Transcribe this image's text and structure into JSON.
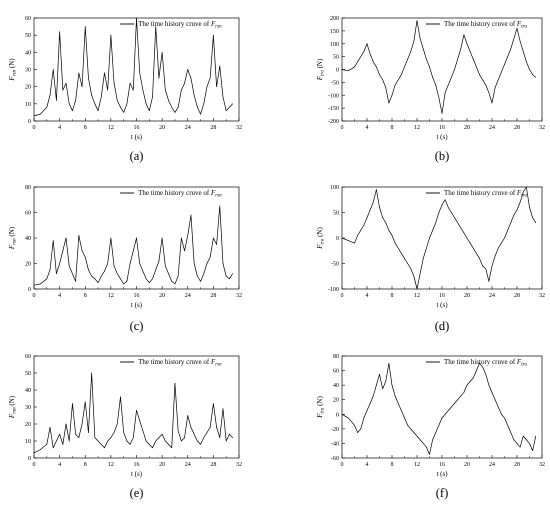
{
  "figure": {
    "panels": [
      {
        "id": "a",
        "caption": "(a)",
        "legend_text": "The time history cruve of",
        "legend_symbol_base": "F",
        "legend_symbol_sub": "rsn",
        "ylabel_base": "F",
        "ylabel_sub": "rsn",
        "ylabel_unit": " (N)",
        "xlabel": "t (s)"
      },
      {
        "id": "b",
        "caption": "(b)",
        "legend_text": "The time history cruve of",
        "legend_symbol_base": "F",
        "legend_symbol_sub": "tra",
        "ylabel_base": "F",
        "ylabel_sub": "tra",
        "ylabel_unit": " (N)",
        "xlabel": "t (s)"
      },
      {
        "id": "c",
        "caption": "(c)",
        "legend_text": "The time history cruve of",
        "legend_symbol_base": "F",
        "legend_symbol_sub": "rsn",
        "ylabel_base": "F",
        "ylabel_sub": "rsn",
        "ylabel_unit": " (N)",
        "xlabel": "t (s)"
      },
      {
        "id": "d",
        "caption": "(d)",
        "legend_text": "The time history cruve of",
        "legend_symbol_base": "F",
        "legend_symbol_sub": "tra",
        "ylabel_base": "F",
        "ylabel_sub": "tra",
        "ylabel_unit": " (N)",
        "xlabel": "t (s)"
      },
      {
        "id": "e",
        "caption": "(e)",
        "legend_text": "The time history cruve of",
        "legend_symbol_base": "F",
        "legend_symbol_sub": "rsn",
        "ylabel_base": "F",
        "ylabel_sub": "rsn",
        "ylabel_unit": " (N)",
        "xlabel": "t (s)"
      },
      {
        "id": "f",
        "caption": "(f)",
        "legend_text": "The time history cruve of",
        "legend_symbol_base": "F",
        "legend_symbol_sub": "tra",
        "ylabel_base": "F",
        "ylabel_sub": "tra",
        "ylabel_unit": " (N)",
        "xlabel": "t (s)"
      }
    ]
  },
  "chart_data": [
    {
      "type": "line",
      "panel": "a",
      "xlim": [
        0,
        32
      ],
      "ylim": [
        0,
        60
      ],
      "xticks": [
        0,
        4,
        8,
        12,
        16,
        20,
        24,
        28,
        32
      ],
      "yticks": [
        0,
        10,
        20,
        30,
        40,
        50,
        60
      ],
      "series": [
        {
          "x": [
            0,
            1,
            2,
            2.5,
            3,
            3.5,
            4,
            4.5,
            5,
            5.5,
            6,
            6.5,
            7,
            7.5,
            8,
            8.5,
            9,
            9.5,
            10,
            10.5,
            11,
            11.5,
            12,
            12.5,
            13,
            13.5,
            14,
            14.5,
            15,
            15.5,
            16,
            16.5,
            17,
            17.5,
            18,
            18.5,
            19,
            19.5,
            20,
            20.5,
            21,
            21.5,
            22,
            22.5,
            23,
            23.5,
            24,
            24.5,
            25,
            25.5,
            26,
            26.5,
            27,
            27.5,
            28,
            28.5,
            29,
            29.5,
            30,
            30.5,
            31
          ],
          "y": [
            3,
            4,
            8,
            15,
            30,
            12,
            52,
            18,
            22,
            10,
            6,
            12,
            28,
            20,
            55,
            25,
            15,
            10,
            6,
            14,
            28,
            18,
            50,
            22,
            12,
            8,
            5,
            10,
            22,
            18,
            60,
            28,
            18,
            10,
            6,
            14,
            55,
            25,
            40,
            18,
            12,
            8,
            5,
            8,
            18,
            22,
            30,
            25,
            15,
            8,
            4,
            10,
            20,
            25,
            50,
            20,
            32,
            14,
            6,
            8,
            10
          ]
        }
      ]
    },
    {
      "type": "line",
      "panel": "b",
      "xlim": [
        0,
        32
      ],
      "ylim": [
        -200,
        200
      ],
      "xticks": [
        0,
        4,
        8,
        12,
        16,
        20,
        24,
        28,
        32
      ],
      "yticks": [
        -200,
        -150,
        -100,
        -50,
        0,
        50,
        100,
        150,
        200
      ],
      "series": [
        {
          "x": [
            0,
            1,
            2,
            2.5,
            3,
            3.5,
            4,
            4.5,
            5,
            5.5,
            6,
            6.5,
            7,
            7.5,
            8,
            8.5,
            9,
            9.5,
            10,
            10.5,
            11,
            11.5,
            12,
            12.5,
            13,
            13.5,
            14,
            14.5,
            15,
            15.5,
            16,
            16.5,
            17,
            17.5,
            18,
            18.5,
            19,
            19.5,
            20,
            20.5,
            21,
            21.5,
            22,
            22.5,
            23,
            23.5,
            24,
            24.5,
            25,
            25.5,
            26,
            26.5,
            27,
            27.5,
            28,
            28.5,
            29,
            29.5,
            30,
            30.5,
            31
          ],
          "y": [
            0,
            -5,
            10,
            30,
            50,
            70,
            100,
            60,
            30,
            10,
            -20,
            -40,
            -70,
            -130,
            -100,
            -60,
            -40,
            -20,
            10,
            40,
            70,
            110,
            190,
            120,
            80,
            40,
            10,
            -30,
            -60,
            -110,
            -170,
            -90,
            -60,
            -30,
            0,
            40,
            80,
            135,
            100,
            70,
            40,
            10,
            -20,
            -40,
            -60,
            -90,
            -130,
            -70,
            -40,
            -10,
            20,
            50,
            80,
            120,
            160,
            110,
            70,
            30,
            0,
            -20,
            -30
          ]
        }
      ]
    },
    {
      "type": "line",
      "panel": "c",
      "xlim": [
        0,
        32
      ],
      "ylim": [
        0,
        80
      ],
      "xticks": [
        0,
        4,
        8,
        12,
        16,
        20,
        24,
        28,
        32
      ],
      "yticks": [
        0,
        20,
        40,
        60,
        80
      ],
      "series": [
        {
          "x": [
            0,
            1,
            2,
            2.5,
            3,
            3.5,
            4,
            4.5,
            5,
            5.5,
            6,
            6.5,
            7,
            7.5,
            8,
            8.5,
            9,
            9.5,
            10,
            10.5,
            11,
            11.5,
            12,
            12.5,
            13,
            13.5,
            14,
            14.5,
            15,
            15.5,
            16,
            16.5,
            17,
            17.5,
            18,
            18.5,
            19,
            19.5,
            20,
            20.5,
            21,
            21.5,
            22,
            22.5,
            23,
            23.5,
            24,
            24.5,
            25,
            25.5,
            26,
            26.5,
            27,
            27.5,
            28,
            28.5,
            29,
            29.5,
            30,
            30.5,
            31
          ],
          "y": [
            3,
            4,
            8,
            15,
            38,
            12,
            20,
            30,
            40,
            18,
            12,
            6,
            42,
            30,
            25,
            15,
            10,
            8,
            5,
            10,
            14,
            20,
            40,
            18,
            12,
            8,
            4,
            6,
            20,
            30,
            40,
            20,
            14,
            8,
            5,
            8,
            15,
            22,
            40,
            18,
            12,
            6,
            4,
            10,
            40,
            30,
            42,
            58,
            20,
            10,
            6,
            12,
            20,
            25,
            40,
            35,
            65,
            20,
            10,
            8,
            12
          ]
        }
      ]
    },
    {
      "type": "line",
      "panel": "d",
      "xlim": [
        0,
        32
      ],
      "ylim": [
        -100,
        100
      ],
      "xticks": [
        0,
        4,
        8,
        12,
        16,
        20,
        24,
        28,
        32
      ],
      "yticks": [
        -100,
        -50,
        0,
        50,
        100
      ],
      "series": [
        {
          "x": [
            0,
            1,
            2,
            2.5,
            3,
            3.5,
            4,
            4.5,
            5,
            5.5,
            6,
            6.5,
            7,
            7.5,
            8,
            8.5,
            9,
            9.5,
            10,
            10.5,
            11,
            11.5,
            12,
            12.5,
            13,
            13.5,
            14,
            14.5,
            15,
            15.5,
            16,
            16.5,
            17,
            17.5,
            18,
            18.5,
            19,
            19.5,
            20,
            20.5,
            21,
            21.5,
            22,
            22.5,
            23,
            23.5,
            24,
            24.5,
            25,
            25.5,
            26,
            26.5,
            27,
            27.5,
            28,
            28.5,
            29,
            29.5,
            30,
            30.5,
            31
          ],
          "y": [
            0,
            -5,
            -10,
            5,
            15,
            25,
            40,
            55,
            70,
            95,
            60,
            40,
            30,
            15,
            5,
            -10,
            -20,
            -30,
            -40,
            -50,
            -60,
            -75,
            -100,
            -70,
            -40,
            -20,
            0,
            15,
            30,
            50,
            65,
            75,
            60,
            50,
            40,
            30,
            20,
            10,
            0,
            -10,
            -20,
            -30,
            -40,
            -55,
            -60,
            -85,
            -55,
            -35,
            -20,
            -10,
            0,
            15,
            30,
            45,
            55,
            70,
            90,
            100,
            60,
            40,
            30
          ]
        }
      ]
    },
    {
      "type": "line",
      "panel": "e",
      "xlim": [
        0,
        32
      ],
      "ylim": [
        0,
        60
      ],
      "xticks": [
        0,
        4,
        8,
        12,
        16,
        20,
        24,
        28,
        32
      ],
      "yticks": [
        0,
        10,
        20,
        30,
        40,
        50,
        60
      ],
      "series": [
        {
          "x": [
            0,
            1,
            2,
            2.5,
            3,
            3.5,
            4,
            4.5,
            5,
            5.5,
            6,
            6.5,
            7,
            7.5,
            8,
            8.5,
            9,
            9.5,
            10,
            10.5,
            11,
            11.5,
            12,
            12.5,
            13,
            13.5,
            14,
            14.5,
            15,
            15.5,
            16,
            16.5,
            17,
            17.5,
            18,
            18.5,
            19,
            19.5,
            20,
            20.5,
            21,
            21.5,
            22,
            22.5,
            23,
            23.5,
            24,
            24.5,
            25,
            25.5,
            26,
            26.5,
            27,
            27.5,
            28,
            28.5,
            29,
            29.5,
            30,
            30.5,
            31
          ],
          "y": [
            3,
            5,
            8,
            18,
            6,
            10,
            14,
            8,
            20,
            10,
            32,
            14,
            12,
            20,
            33,
            15,
            50,
            12,
            10,
            8,
            6,
            10,
            12,
            15,
            20,
            36,
            15,
            10,
            8,
            12,
            28,
            22,
            16,
            10,
            8,
            6,
            10,
            12,
            14,
            10,
            8,
            6,
            44,
            16,
            10,
            12,
            25,
            18,
            14,
            10,
            8,
            12,
            15,
            18,
            32,
            18,
            12,
            29,
            10,
            14,
            12
          ]
        }
      ]
    },
    {
      "type": "line",
      "panel": "f",
      "xlim": [
        0,
        32
      ],
      "ylim": [
        -60,
        80
      ],
      "xticks": [
        0,
        4,
        8,
        12,
        16,
        20,
        24,
        28,
        32
      ],
      "yticks": [
        -60,
        -40,
        -20,
        0,
        20,
        40,
        60,
        80
      ],
      "series": [
        {
          "x": [
            0,
            1,
            2,
            2.5,
            3,
            3.5,
            4,
            4.5,
            5,
            5.5,
            6,
            6.5,
            7,
            7.5,
            8,
            8.5,
            9,
            9.5,
            10,
            10.5,
            11,
            11.5,
            12,
            12.5,
            13,
            13.5,
            14,
            14.5,
            15,
            15.5,
            16,
            16.5,
            17,
            17.5,
            18,
            18.5,
            19,
            19.5,
            20,
            20.5,
            21,
            21.5,
            22,
            22.5,
            23,
            23.5,
            24,
            24.5,
            25,
            25.5,
            26,
            26.5,
            27,
            27.5,
            28,
            28.5,
            29,
            29.5,
            30,
            30.5,
            31
          ],
          "y": [
            0,
            -5,
            -15,
            -25,
            -20,
            -5,
            5,
            15,
            25,
            40,
            55,
            35,
            45,
            70,
            40,
            25,
            15,
            5,
            -5,
            -15,
            -20,
            -25,
            -30,
            -35,
            -40,
            -45,
            -55,
            -35,
            -25,
            -15,
            -5,
            0,
            5,
            10,
            15,
            20,
            25,
            30,
            40,
            45,
            50,
            60,
            70,
            65,
            55,
            40,
            30,
            20,
            10,
            0,
            -5,
            -15,
            -25,
            -35,
            -40,
            -45,
            -30,
            -35,
            -40,
            -50,
            -30
          ]
        }
      ]
    }
  ]
}
